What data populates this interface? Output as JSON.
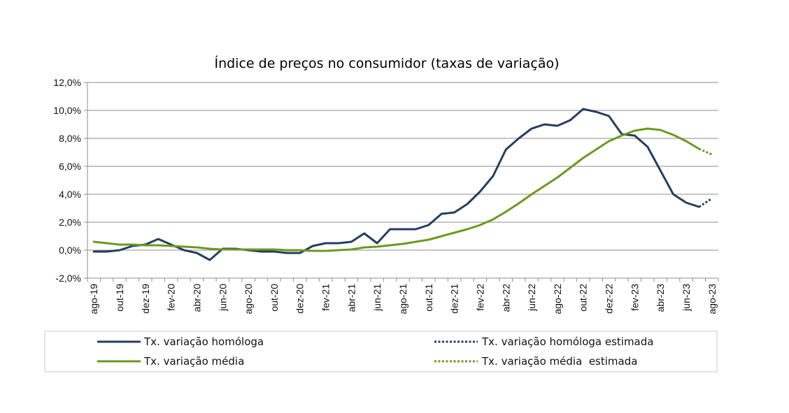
{
  "chart_data": {
    "type": "line",
    "title": "Índice de preços no consumidor  (taxas  de variação)",
    "xlabel": "",
    "ylabel": "",
    "ylim": [
      -2.0,
      12.0
    ],
    "y_ticks": [
      -2.0,
      0.0,
      2.0,
      4.0,
      6.0,
      8.0,
      10.0,
      12.0
    ],
    "y_tick_labels": [
      "-2,0%",
      "0,0%",
      "2,0%",
      "4,0%",
      "6,0%",
      "8,0%",
      "10,0%",
      "12,0%"
    ],
    "grid": true,
    "legend_position": "bottom",
    "x": [
      "ago-19",
      "set-19",
      "out-19",
      "nov-19",
      "dez-19",
      "jan-20",
      "fev-20",
      "mar-20",
      "abr-20",
      "mai-20",
      "jun-20",
      "jul-20",
      "ago-20",
      "set-20",
      "out-20",
      "nov-20",
      "dez-20",
      "jan-21",
      "fev-21",
      "mar-21",
      "abr-21",
      "mai-21",
      "jun-21",
      "jul-21",
      "ago-21",
      "set-21",
      "out-21",
      "nov-21",
      "dez-21",
      "jan-22",
      "fev-22",
      "mar-22",
      "abr-22",
      "mai-22",
      "jun-22",
      "jul-22",
      "ago-22",
      "set-22",
      "out-22",
      "nov-22",
      "dez-22",
      "jan-23",
      "fev-23",
      "mar-23",
      "abr-23",
      "mai-23",
      "jun-23",
      "jul-23",
      "ago-23"
    ],
    "x_tick_labels": [
      "ago-19",
      "",
      "out-19",
      "",
      "dez-19",
      "",
      "fev-20",
      "",
      "abr-20",
      "",
      "jun-20",
      "",
      "ago-20",
      "",
      "out-20",
      "",
      "dez-20",
      "",
      "fev-21",
      "",
      "abr-21",
      "",
      "jun-21",
      "",
      "ago-21",
      "",
      "out-21",
      "",
      "dez-21",
      "",
      "fev-22",
      "",
      "abr-22",
      "",
      "jun-22",
      "",
      "ago-22",
      "",
      "out-22",
      "",
      "dez-22",
      "",
      "fev-23",
      "",
      "abr-23",
      "",
      "jun-23",
      "",
      "ago-23"
    ],
    "series": [
      {
        "name": "Tx. variação homóloga",
        "color": "#243f60",
        "style": "solid",
        "values": [
          -0.1,
          -0.1,
          0.0,
          0.3,
          0.4,
          0.8,
          0.4,
          0.0,
          -0.2,
          -0.7,
          0.1,
          0.1,
          0.0,
          -0.1,
          -0.1,
          -0.2,
          -0.2,
          0.3,
          0.5,
          0.5,
          0.6,
          1.2,
          0.5,
          1.5,
          1.5,
          1.5,
          1.8,
          2.6,
          2.7,
          3.3,
          4.2,
          5.3,
          7.2,
          8.0,
          8.7,
          9.0,
          8.9,
          9.3,
          10.1,
          9.9,
          9.6,
          8.3,
          8.2,
          7.4,
          5.7,
          4.0,
          3.4,
          3.1,
          null
        ]
      },
      {
        "name": "Tx. variação homóloga estimada",
        "color": "#243f60",
        "style": "dotted",
        "values": [
          null,
          null,
          null,
          null,
          null,
          null,
          null,
          null,
          null,
          null,
          null,
          null,
          null,
          null,
          null,
          null,
          null,
          null,
          null,
          null,
          null,
          null,
          null,
          null,
          null,
          null,
          null,
          null,
          null,
          null,
          null,
          null,
          null,
          null,
          null,
          null,
          null,
          null,
          null,
          null,
          null,
          null,
          null,
          null,
          null,
          null,
          null,
          3.1,
          3.7
        ]
      },
      {
        "name": "Tx. variação média",
        "color": "#6a9a1f",
        "style": "solid",
        "values": [
          0.6,
          0.5,
          0.4,
          0.4,
          0.35,
          0.35,
          0.3,
          0.25,
          0.2,
          0.1,
          0.05,
          0.05,
          0.05,
          0.05,
          0.05,
          0.0,
          0.0,
          -0.05,
          -0.05,
          0.0,
          0.05,
          0.2,
          0.25,
          0.35,
          0.45,
          0.6,
          0.75,
          1.0,
          1.25,
          1.5,
          1.8,
          2.2,
          2.75,
          3.35,
          4.0,
          4.6,
          5.2,
          5.9,
          6.6,
          7.2,
          7.8,
          8.2,
          8.55,
          8.7,
          8.6,
          8.25,
          7.8,
          7.25,
          null
        ]
      },
      {
        "name": "Tx. variação média  estimada",
        "color": "#6a9a1f",
        "style": "dotted",
        "values": [
          null,
          null,
          null,
          null,
          null,
          null,
          null,
          null,
          null,
          null,
          null,
          null,
          null,
          null,
          null,
          null,
          null,
          null,
          null,
          null,
          null,
          null,
          null,
          null,
          null,
          null,
          null,
          null,
          null,
          null,
          null,
          null,
          null,
          null,
          null,
          null,
          null,
          null,
          null,
          null,
          null,
          null,
          null,
          null,
          null,
          null,
          null,
          7.25,
          6.85
        ]
      }
    ]
  }
}
